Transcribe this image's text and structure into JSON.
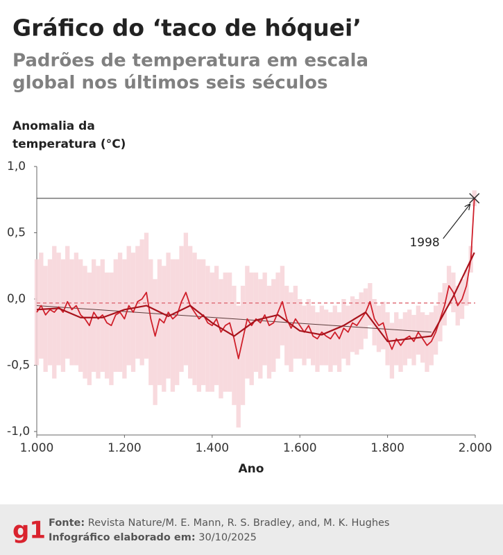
{
  "chart_data": {
    "type": "line",
    "title": "Gráfico do ‘taco de hóquei’",
    "subtitle": [
      "Padrões de temperatura em escala",
      "global nos últimos seis séculos"
    ],
    "y_label": [
      "Anomalia da",
      "temperatura (°C)"
    ],
    "x_label": "Ano",
    "color": "#cf1f2a",
    "band_color": "#f7d3d8",
    "smooth_color": "#a8121b",
    "xlim": [
      1000,
      2000
    ],
    "xticks": [
      {
        "value": 1000,
        "label": "1.000"
      },
      {
        "value": 1200,
        "label": "1.200"
      },
      {
        "value": 1400,
        "label": "1.400"
      },
      {
        "value": 1600,
        "label": "1.600"
      },
      {
        "value": 1800,
        "label": "1.800"
      },
      {
        "value": 2000,
        "label": "2.000"
      }
    ],
    "ylim": [
      -1.0,
      1.0
    ],
    "yticks": [
      {
        "value": 1.0,
        "label": "1,0"
      },
      {
        "value": 0.5,
        "label": "0,5"
      },
      {
        "value": 0.0,
        "label": "0,0"
      },
      {
        "value": -0.5,
        "label": "-0,5"
      },
      {
        "value": -1.0,
        "label": "-1,0"
      }
    ],
    "x": [
      1000,
      1010,
      1020,
      1030,
      1040,
      1050,
      1060,
      1070,
      1080,
      1090,
      1100,
      1110,
      1120,
      1130,
      1140,
      1150,
      1160,
      1170,
      1180,
      1190,
      1200,
      1210,
      1220,
      1230,
      1240,
      1250,
      1260,
      1270,
      1280,
      1290,
      1300,
      1310,
      1320,
      1330,
      1340,
      1350,
      1360,
      1370,
      1380,
      1390,
      1400,
      1410,
      1420,
      1430,
      1440,
      1450,
      1460,
      1470,
      1480,
      1490,
      1500,
      1510,
      1520,
      1530,
      1540,
      1550,
      1560,
      1570,
      1580,
      1590,
      1600,
      1610,
      1620,
      1630,
      1640,
      1650,
      1660,
      1670,
      1680,
      1690,
      1700,
      1710,
      1720,
      1730,
      1740,
      1750,
      1760,
      1770,
      1780,
      1790,
      1800,
      1810,
      1820,
      1830,
      1840,
      1850,
      1860,
      1870,
      1880,
      1890,
      1900,
      1910,
      1920,
      1930,
      1940,
      1950,
      1960,
      1970,
      1980,
      1990,
      1998
    ],
    "values": [
      -0.1,
      -0.05,
      -0.12,
      -0.08,
      -0.1,
      -0.06,
      -0.1,
      -0.02,
      -0.08,
      -0.05,
      -0.12,
      -0.15,
      -0.2,
      -0.1,
      -0.15,
      -0.12,
      -0.18,
      -0.2,
      -0.12,
      -0.1,
      -0.15,
      -0.05,
      -0.1,
      -0.02,
      0.0,
      0.05,
      -0.15,
      -0.28,
      -0.15,
      -0.18,
      -0.1,
      -0.15,
      -0.12,
      -0.02,
      0.05,
      -0.05,
      -0.1,
      -0.15,
      -0.12,
      -0.18,
      -0.2,
      -0.15,
      -0.25,
      -0.2,
      -0.18,
      -0.3,
      -0.45,
      -0.3,
      -0.15,
      -0.2,
      -0.15,
      -0.18,
      -0.12,
      -0.2,
      -0.18,
      -0.1,
      -0.02,
      -0.15,
      -0.22,
      -0.15,
      -0.2,
      -0.25,
      -0.2,
      -0.28,
      -0.3,
      -0.25,
      -0.28,
      -0.3,
      -0.25,
      -0.3,
      -0.22,
      -0.25,
      -0.18,
      -0.2,
      -0.15,
      -0.1,
      -0.02,
      -0.15,
      -0.2,
      -0.18,
      -0.3,
      -0.38,
      -0.3,
      -0.35,
      -0.3,
      -0.28,
      -0.32,
      -0.25,
      -0.3,
      -0.35,
      -0.32,
      -0.25,
      -0.15,
      -0.05,
      0.1,
      0.05,
      -0.05,
      0.0,
      0.1,
      0.3,
      0.76
    ],
    "band_upper": [
      0.3,
      0.35,
      0.25,
      0.3,
      0.4,
      0.35,
      0.3,
      0.4,
      0.3,
      0.35,
      0.3,
      0.25,
      0.2,
      0.3,
      0.25,
      0.3,
      0.2,
      0.2,
      0.3,
      0.35,
      0.3,
      0.4,
      0.35,
      0.4,
      0.45,
      0.5,
      0.3,
      0.15,
      0.3,
      0.25,
      0.35,
      0.3,
      0.3,
      0.4,
      0.5,
      0.4,
      0.35,
      0.3,
      0.3,
      0.25,
      0.2,
      0.25,
      0.15,
      0.2,
      0.2,
      0.1,
      -0.05,
      0.1,
      0.25,
      0.2,
      0.2,
      0.15,
      0.2,
      0.1,
      0.15,
      0.2,
      0.25,
      0.1,
      0.05,
      0.1,
      0.0,
      -0.05,
      0.0,
      -0.05,
      -0.1,
      -0.05,
      -0.08,
      -0.1,
      -0.05,
      -0.1,
      0.0,
      -0.05,
      0.02,
      0.0,
      0.05,
      0.08,
      0.12,
      0.0,
      -0.05,
      -0.02,
      -0.1,
      -0.18,
      -0.1,
      -0.15,
      -0.1,
      -0.08,
      -0.12,
      -0.05,
      -0.1,
      -0.12,
      -0.1,
      -0.05,
      0.05,
      0.12,
      0.25,
      0.2,
      0.1,
      0.15,
      0.22,
      0.4,
      0.82
    ],
    "band_lower": [
      -0.5,
      -0.45,
      -0.55,
      -0.5,
      -0.6,
      -0.5,
      -0.55,
      -0.45,
      -0.5,
      -0.5,
      -0.55,
      -0.6,
      -0.65,
      -0.55,
      -0.6,
      -0.55,
      -0.6,
      -0.65,
      -0.55,
      -0.55,
      -0.6,
      -0.5,
      -0.55,
      -0.45,
      -0.5,
      -0.45,
      -0.65,
      -0.8,
      -0.65,
      -0.7,
      -0.6,
      -0.7,
      -0.65,
      -0.55,
      -0.5,
      -0.6,
      -0.65,
      -0.7,
      -0.65,
      -0.7,
      -0.7,
      -0.65,
      -0.75,
      -0.7,
      -0.7,
      -0.8,
      -0.97,
      -0.8,
      -0.6,
      -0.65,
      -0.55,
      -0.6,
      -0.5,
      -0.6,
      -0.55,
      -0.45,
      -0.35,
      -0.5,
      -0.55,
      -0.45,
      -0.45,
      -0.5,
      -0.45,
      -0.5,
      -0.55,
      -0.5,
      -0.5,
      -0.55,
      -0.5,
      -0.55,
      -0.45,
      -0.5,
      -0.4,
      -0.42,
      -0.38,
      -0.3,
      -0.2,
      -0.35,
      -0.4,
      -0.38,
      -0.5,
      -0.6,
      -0.5,
      -0.55,
      -0.5,
      -0.45,
      -0.5,
      -0.42,
      -0.48,
      -0.55,
      -0.5,
      -0.42,
      -0.32,
      -0.2,
      -0.05,
      -0.1,
      -0.2,
      -0.15,
      -0.05,
      0.2,
      0.7
    ],
    "smooth_x": [
      1000,
      1050,
      1100,
      1150,
      1200,
      1250,
      1300,
      1350,
      1400,
      1450,
      1500,
      1550,
      1600,
      1650,
      1700,
      1750,
      1800,
      1850,
      1900,
      1950,
      1998
    ],
    "smooth_values": [
      -0.08,
      -0.07,
      -0.14,
      -0.14,
      -0.08,
      -0.05,
      -0.13,
      -0.05,
      -0.18,
      -0.28,
      -0.16,
      -0.12,
      -0.24,
      -0.27,
      -0.2,
      -0.1,
      -0.32,
      -0.3,
      -0.28,
      0.02,
      0.35
    ],
    "trend": {
      "x": [
        1000,
        1900
      ],
      "values": [
        -0.05,
        -0.25
      ]
    },
    "mean_line": -0.03,
    "reference": {
      "x": 1998,
      "value": 0.76,
      "label": "1998"
    }
  },
  "footer": {
    "logo": "g1",
    "source_label": "Fonte:",
    "source": "Revista Nature/M. E. Mann, R. S. Bradley, and, M. K. Hughes",
    "credit_label": "Infográfico elaborado em:",
    "date": "30/10/2025"
  }
}
